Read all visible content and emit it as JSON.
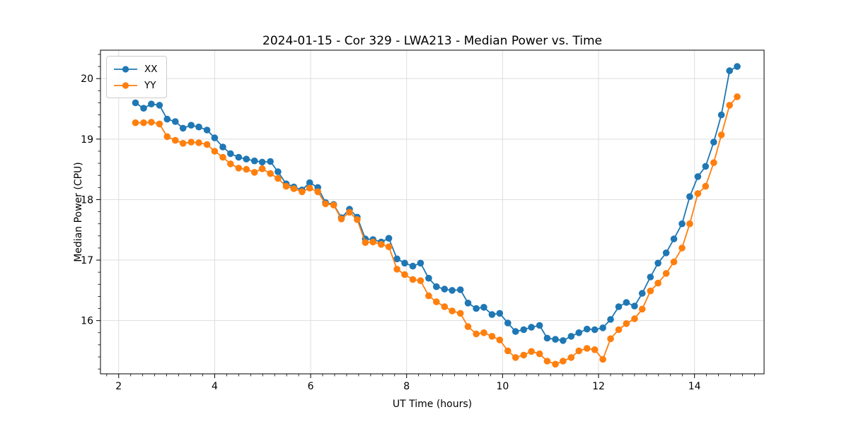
{
  "figure": {
    "background": "#ffffff"
  },
  "chart_data": {
    "type": "line",
    "title": "2024-01-15 - Cor 329 - LWA213 - Median Power vs. Time",
    "xlabel": "UT Time (hours)",
    "ylabel": "Median Power (CPU)",
    "xlim": [
      1.62,
      15.45
    ],
    "ylim": [
      15.12,
      20.47
    ],
    "x_major_ticks": [
      2,
      4,
      6,
      8,
      10,
      12,
      14
    ],
    "y_major_ticks": [
      16,
      17,
      18,
      19,
      20
    ],
    "x_minor_step": 0.25,
    "y_minor_step": 0.2,
    "grid": true,
    "grid_color": "#dedede",
    "legend_position": "upper left",
    "x": [
      2.35,
      2.52,
      2.68,
      2.85,
      3.01,
      3.18,
      3.34,
      3.51,
      3.67,
      3.84,
      4.0,
      4.17,
      4.33,
      4.5,
      4.66,
      4.83,
      4.99,
      5.16,
      5.32,
      5.49,
      5.65,
      5.82,
      5.98,
      6.15,
      6.31,
      6.48,
      6.64,
      6.81,
      6.97,
      7.14,
      7.3,
      7.47,
      7.63,
      7.8,
      7.96,
      8.13,
      8.29,
      8.46,
      8.62,
      8.79,
      8.95,
      9.12,
      9.28,
      9.45,
      9.61,
      9.78,
      9.94,
      10.11,
      10.27,
      10.44,
      10.6,
      10.77,
      10.93,
      11.1,
      11.26,
      11.43,
      11.59,
      11.76,
      11.92,
      12.09,
      12.25,
      12.42,
      12.58,
      12.75,
      12.91,
      13.08,
      13.24,
      13.41,
      13.57,
      13.74,
      13.9,
      14.07,
      14.23,
      14.4,
      14.56,
      14.73,
      14.89
    ],
    "series": [
      {
        "name": "XX",
        "color": "#1f77b4",
        "values": [
          19.6,
          19.51,
          19.58,
          19.56,
          19.33,
          19.29,
          19.18,
          19.23,
          19.2,
          19.15,
          19.02,
          18.87,
          18.76,
          18.7,
          18.67,
          18.64,
          18.62,
          18.63,
          18.46,
          18.26,
          18.21,
          18.16,
          18.28,
          18.2,
          17.95,
          17.92,
          17.7,
          17.84,
          17.71,
          17.35,
          17.34,
          17.3,
          17.36,
          17.02,
          16.95,
          16.9,
          16.95,
          16.7,
          16.56,
          16.52,
          16.5,
          16.51,
          16.29,
          16.2,
          16.22,
          16.1,
          16.12,
          15.96,
          15.82,
          15.85,
          15.89,
          15.92,
          15.71,
          15.69,
          15.67,
          15.74,
          15.8,
          15.86,
          15.85,
          15.88,
          16.02,
          16.23,
          16.3,
          16.24,
          16.45,
          16.72,
          16.95,
          17.12,
          17.35,
          17.6,
          18.05,
          18.38,
          18.55,
          18.95,
          19.4,
          20.13,
          20.2
        ]
      },
      {
        "name": "YY",
        "color": "#ff7f0e",
        "values": [
          19.27,
          19.27,
          19.28,
          19.25,
          19.04,
          18.98,
          18.93,
          18.95,
          18.94,
          18.91,
          18.8,
          18.7,
          18.59,
          18.52,
          18.5,
          18.45,
          18.51,
          18.43,
          18.35,
          18.22,
          18.18,
          18.13,
          18.19,
          18.13,
          17.93,
          17.91,
          17.68,
          17.79,
          17.67,
          17.29,
          17.3,
          17.26,
          17.22,
          16.85,
          16.76,
          16.68,
          16.66,
          16.41,
          16.31,
          16.23,
          16.16,
          16.12,
          15.9,
          15.78,
          15.8,
          15.74,
          15.68,
          15.5,
          15.39,
          15.43,
          15.49,
          15.45,
          15.33,
          15.28,
          15.33,
          15.39,
          15.5,
          15.54,
          15.52,
          15.36,
          15.7,
          15.85,
          15.95,
          16.03,
          16.19,
          16.49,
          16.62,
          16.78,
          16.97,
          17.2,
          17.6,
          18.1,
          18.22,
          18.61,
          19.07,
          19.56,
          19.7
        ]
      }
    ]
  }
}
